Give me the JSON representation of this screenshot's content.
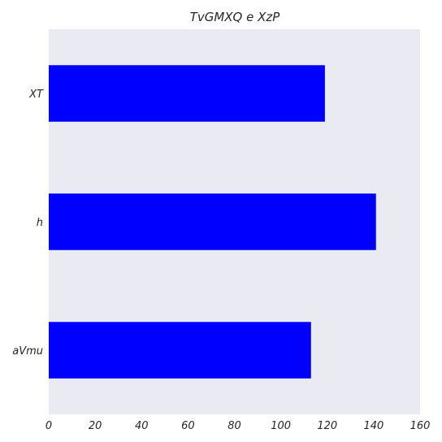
{
  "chart_data": {
    "type": "bar",
    "orientation": "horizontal",
    "title": "TvGMXQ e XzP",
    "xlabel": "",
    "ylabel": "",
    "categories": [
      "XT",
      "h",
      "aVmu"
    ],
    "values": [
      119,
      141,
      113
    ],
    "xlim": [
      0,
      160
    ],
    "xticks": [
      0,
      20,
      40,
      60,
      80,
      100,
      120,
      140,
      160
    ],
    "grid": false,
    "legend": "none",
    "colors": {
      "bar": "#0000ff",
      "plot_background": "#eaeaf2"
    }
  }
}
